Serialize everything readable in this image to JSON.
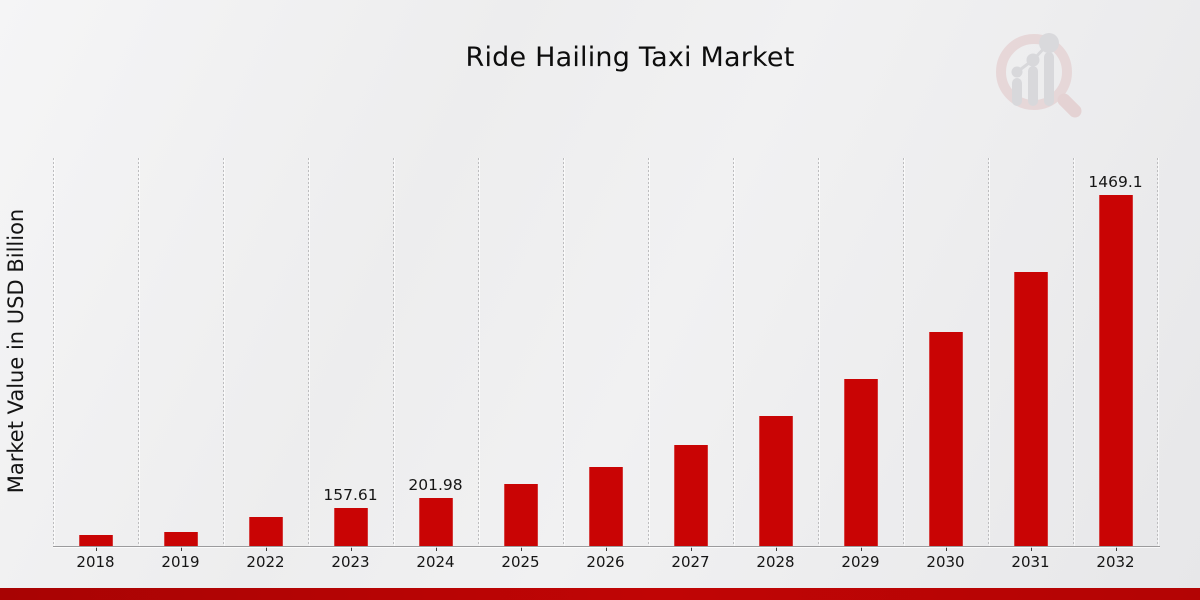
{
  "header": {
    "title": "Ride Hailing Taxi Market",
    "logo_icon": "magnifier-bar-chart-watermark"
  },
  "chart_data": {
    "type": "bar",
    "title": "Ride Hailing Taxi Market",
    "xlabel": "",
    "ylabel": "Market Value in USD Billion",
    "categories": [
      "2018",
      "2019",
      "2022",
      "2023",
      "2024",
      "2025",
      "2026",
      "2027",
      "2028",
      "2029",
      "2030",
      "2031",
      "2032"
    ],
    "values": [
      45.6,
      58.4,
      123.0,
      157.61,
      201.98,
      258.9,
      331.7,
      425.1,
      544.8,
      698.2,
      894.7,
      1146.6,
      1469.1
    ],
    "bar_value_labels": [
      "",
      "",
      "",
      "157.61",
      "201.98",
      "",
      "",
      "",
      "",
      "",
      "",
      "",
      "1469.1"
    ],
    "ylim": [
      0,
      1625
    ],
    "grid": "vertical-dashed",
    "legend_position": "none",
    "bar_color": "#c90404",
    "grid_color": "#bdbdbf",
    "axis_color": "#9b9b9d"
  },
  "footer": {
    "banner_color": "#b30404"
  }
}
